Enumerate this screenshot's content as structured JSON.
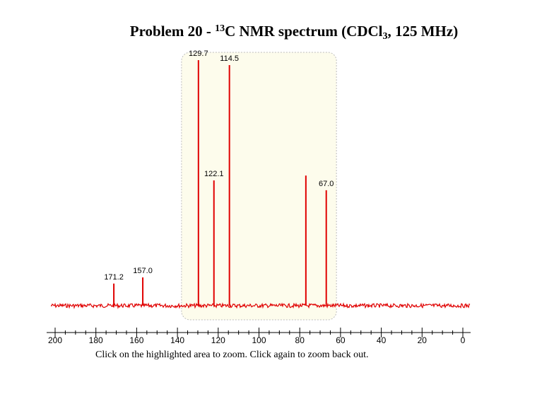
{
  "title": {
    "pre": "Problem 20 - ",
    "isotope_sup": "13",
    "nucleus": "C NMR spectrum (CDCl",
    "subscript": "3",
    "post": ", 125 MHz)"
  },
  "instructions": "Click on the highlighted area to zoom. Click again to zoom back out.",
  "zoom_region": {
    "from": 138,
    "to": 62,
    "fill": "#fdfcec"
  },
  "chart_data": {
    "type": "line",
    "title": "Problem 20 - 13C NMR spectrum (CDCl3, 125 MHz)",
    "xlabel": "",
    "ylabel": "",
    "xlim": [
      200,
      0
    ],
    "x_reversed": true,
    "x_ticks": [
      "200",
      "180",
      "160",
      "140",
      "120",
      "100",
      "80",
      "60",
      "40",
      "20",
      "0"
    ],
    "color": "#e00000",
    "peaks": [
      {
        "x": 171.2,
        "height": 0.09,
        "label": "171.2"
      },
      {
        "x": 157.0,
        "height": 0.115,
        "label": "157.0"
      },
      {
        "x": 129.7,
        "height": 1.0,
        "label": "129.7"
      },
      {
        "x": 122.1,
        "height": 0.51,
        "label": "122.1"
      },
      {
        "x": 114.5,
        "height": 0.98,
        "label": "114.5"
      },
      {
        "x": 77.0,
        "height": 0.53,
        "label": ""
      },
      {
        "x": 67.0,
        "height": 0.47,
        "label": "67.0"
      }
    ]
  }
}
